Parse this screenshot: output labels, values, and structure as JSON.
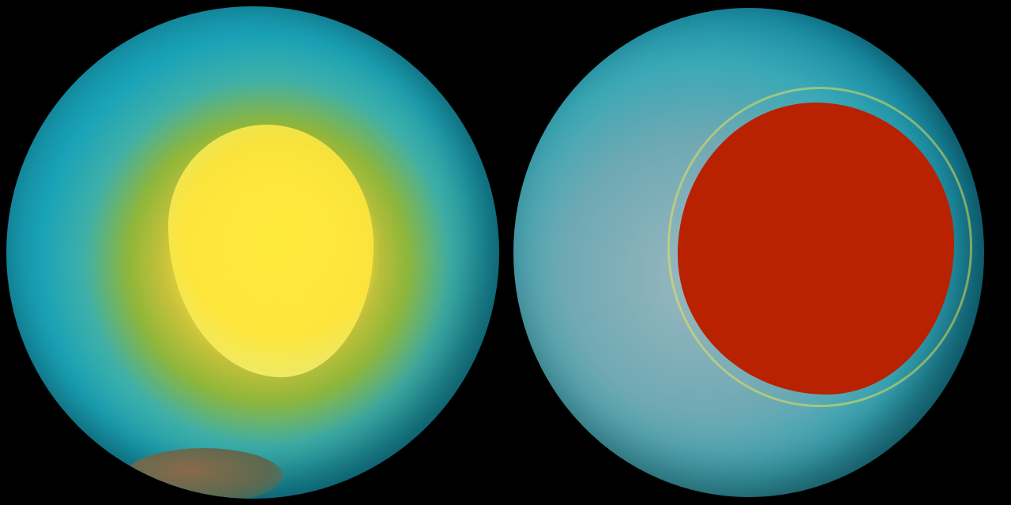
{
  "panels": [
    {
      "name": "left-globe",
      "palette": [
        "#ffee40",
        "#1aa3b8",
        "#06304a"
      ]
    },
    {
      "name": "right-globe",
      "palette": [
        "#b82200",
        "#f5a020",
        "#1890a8",
        "#062e46"
      ]
    }
  ]
}
